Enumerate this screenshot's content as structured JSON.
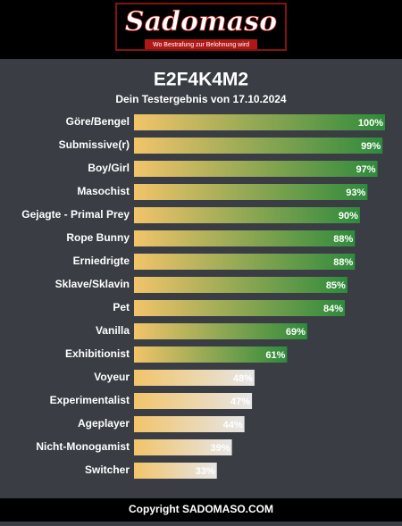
{
  "header": {
    "logo": "Sadomaso",
    "slogan": "Wo Bestrafung zur Belohnung wird"
  },
  "chart_data": {
    "type": "bar",
    "orientation": "horizontal",
    "title": "E2F4K4M2",
    "subtitle": "Dein Testergebnis von 17.10.2024",
    "categories": [
      "Göre/Bengel",
      "Submissive(r)",
      "Boy/Girl",
      "Masochist",
      "Gejagte - Primal Prey",
      "Rope Bunny",
      "Erniedrigte",
      "Sklave/Sklavin",
      "Pet",
      "Vanilla",
      "Exhibitionist",
      "Voyeur",
      "Experimentalist",
      "Ageplayer",
      "Nicht-Monogamist",
      "Switcher"
    ],
    "values": [
      100,
      99,
      97,
      93,
      90,
      88,
      88,
      85,
      84,
      69,
      61,
      48,
      47,
      44,
      39,
      33
    ],
    "value_labels": [
      "100%",
      "99%",
      "97%",
      "93%",
      "90%",
      "88%",
      "88%",
      "85%",
      "84%",
      "69%",
      "61%",
      "48%",
      "47%",
      "44%",
      "39%",
      "33%"
    ],
    "xlim": [
      0,
      100
    ],
    "start_color": "#f2c46a",
    "end_colors": [
      "#2e8b3c",
      "#2e8b3c",
      "#2e8b3c",
      "#2e8b3c",
      "#2e8b3c",
      "#2e8b3c",
      "#2e8b3c",
      "#2e8b3c",
      "#2e8b3c",
      "#2e8b3c",
      "#2e8b3c",
      "#e6e6e6",
      "#e6e6e6",
      "#e6e6e6",
      "#e6e6e6",
      "#e6e6e6"
    ]
  },
  "footer": {
    "text": "Copyright SADOMASO.COM"
  }
}
